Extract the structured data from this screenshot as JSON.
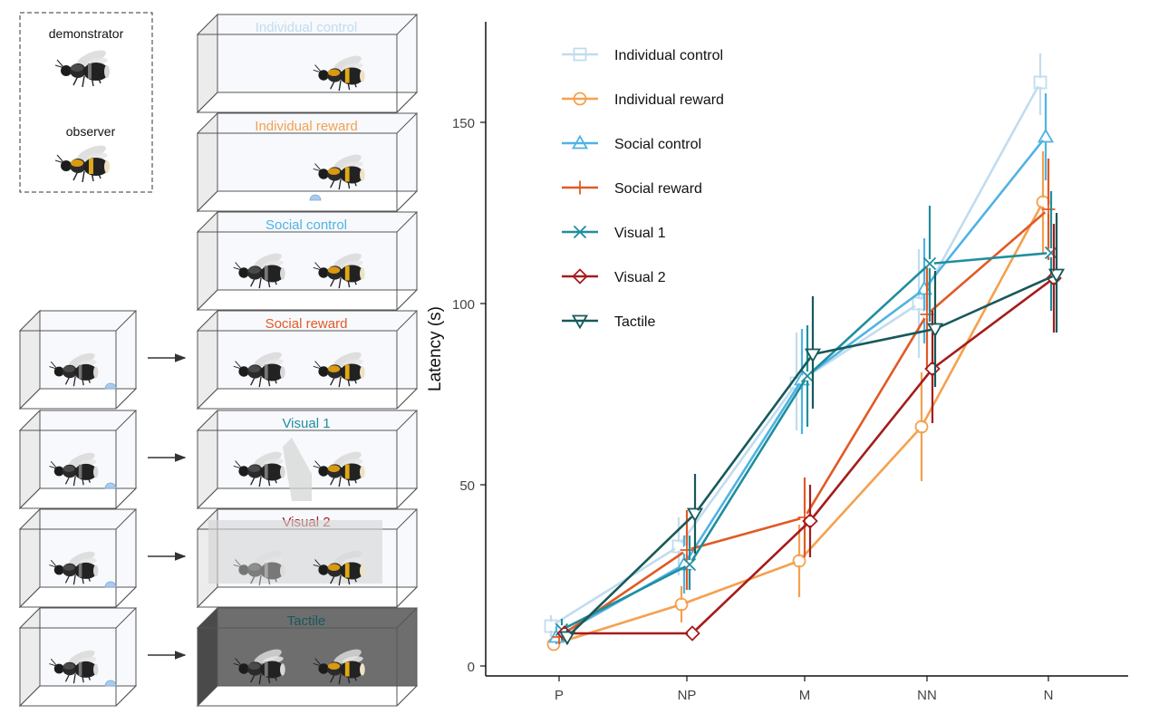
{
  "legend_panel": {
    "demonstrator_label": "demonstrator",
    "observer_label": "observer"
  },
  "conditions": [
    {
      "label": "Individual control",
      "color": "#c1dcef",
      "has_demo_box": false,
      "dark": false,
      "reward_in_test": false,
      "demonstrator_in_test": false,
      "divider": "none"
    },
    {
      "label": "Individual reward",
      "color": "#f5a04f",
      "has_demo_box": false,
      "dark": false,
      "reward_in_test": true,
      "demonstrator_in_test": false,
      "divider": "none"
    },
    {
      "label": "Social control",
      "color": "#4fb3e3",
      "has_demo_box": false,
      "dark": false,
      "reward_in_test": false,
      "demonstrator_in_test": true,
      "divider": "none"
    },
    {
      "label": "Social reward",
      "color": "#e15a25",
      "has_demo_box": true,
      "dark": false,
      "reward_in_test": false,
      "demonstrator_in_test": true,
      "divider": "none"
    },
    {
      "label": "Visual 1",
      "color": "#1f8e9e",
      "has_demo_box": true,
      "dark": false,
      "reward_in_test": false,
      "demonstrator_in_test": true,
      "divider": "vertical"
    },
    {
      "label": "Visual 2",
      "color": "#a51c1c",
      "has_demo_box": true,
      "dark": false,
      "reward_in_test": false,
      "demonstrator_in_test": true,
      "divider": "horizontal"
    },
    {
      "label": "Tactile",
      "color": "#17595a",
      "has_demo_box": true,
      "dark": true,
      "reward_in_test": false,
      "demonstrator_in_test": true,
      "divider": "none"
    }
  ],
  "chart_data": {
    "type": "line",
    "title": "",
    "xlabel": "",
    "ylabel": "Latency (s)",
    "categories": [
      "P",
      "NP",
      "M",
      "NN",
      "N"
    ],
    "ylim": [
      0,
      175
    ],
    "yticks": [
      0,
      50,
      100,
      150
    ],
    "grid": false,
    "legend_position": "top-left",
    "series": [
      {
        "name": "Individual control",
        "color": "#c1dcef",
        "marker": "square",
        "values": [
          11,
          33,
          78,
          100,
          161
        ],
        "lower": [
          8,
          25,
          65,
          85,
          152
        ],
        "upper": [
          14,
          41,
          92,
          115,
          169
        ]
      },
      {
        "name": "Individual reward",
        "color": "#f5a04f",
        "marker": "circle",
        "values": [
          6,
          17,
          29,
          66,
          128
        ],
        "lower": [
          5,
          12,
          19,
          51,
          114
        ],
        "upper": [
          8,
          22,
          39,
          81,
          142
        ]
      },
      {
        "name": "Social control",
        "color": "#4fb3e3",
        "marker": "triangle-up",
        "values": [
          8,
          28,
          79,
          104,
          146
        ],
        "lower": [
          6,
          20,
          64,
          89,
          134
        ],
        "upper": [
          11,
          36,
          93,
          118,
          158
        ]
      },
      {
        "name": "Social reward",
        "color": "#e15a25",
        "marker": "plus",
        "values": [
          8,
          32,
          41,
          97,
          126
        ],
        "lower": [
          6,
          21,
          30,
          82,
          112
        ],
        "upper": [
          10,
          43,
          52,
          112,
          140
        ]
      },
      {
        "name": "Visual 1",
        "color": "#1f8e9e",
        "marker": "x",
        "values": [
          10,
          28,
          80,
          111,
          114
        ],
        "lower": [
          7,
          21,
          66,
          95,
          98
        ],
        "upper": [
          13,
          36,
          94,
          127,
          131
        ]
      },
      {
        "name": "Visual 2",
        "color": "#a51c1c",
        "marker": "diamond",
        "values": [
          9,
          9,
          40,
          82,
          107
        ],
        "lower": [
          7,
          8,
          30,
          67,
          92
        ],
        "upper": [
          11,
          10,
          50,
          98,
          122
        ]
      },
      {
        "name": "Tactile",
        "color": "#17595a",
        "marker": "triangle-down",
        "values": [
          8,
          42,
          86,
          93,
          108
        ],
        "lower": [
          6,
          31,
          71,
          77,
          92
        ],
        "upper": [
          10,
          53,
          102,
          109,
          125
        ]
      }
    ]
  }
}
